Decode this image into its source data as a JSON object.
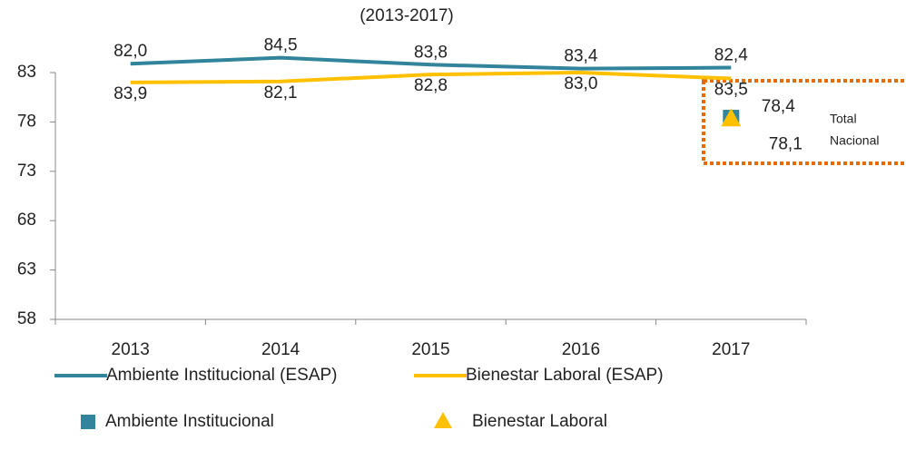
{
  "chart_data": {
    "type": "line",
    "title": "(2013-2017)",
    "categories": [
      "2013",
      "2014",
      "2015",
      "2016",
      "2017"
    ],
    "series": [
      {
        "name": "Ambiente Institucional (ESAP)",
        "color": "#31849b",
        "values": [
          83.9,
          84.5,
          83.8,
          83.4,
          83.5
        ],
        "value_labels": [
          "83,9",
          "84,5",
          "83,8",
          "83,4",
          "83,5"
        ]
      },
      {
        "name": "Bienestar Laboral (ESAP)",
        "color": "#ffc000",
        "values": [
          82.0,
          82.1,
          82.8,
          83.0,
          82.4
        ],
        "value_labels": [
          "82,0",
          "82,1",
          "82,8",
          "83,0",
          "82,4"
        ]
      }
    ],
    "markers": [
      {
        "name": "Ambiente Institucional",
        "color": "#31849b",
        "shape": "square",
        "x": "2017",
        "value": 78.4,
        "value_label": "78,4"
      },
      {
        "name": "Bienestar Laboral",
        "color": "#ffc000",
        "shape": "triangle",
        "x": "2017",
        "value": 78.1,
        "value_label": "78,1"
      }
    ],
    "annotation": [
      "Total",
      "Nacional"
    ],
    "ylim": [
      58,
      88
    ],
    "yticks": [
      58,
      63,
      68,
      73,
      78,
      83
    ],
    "grid": false
  }
}
